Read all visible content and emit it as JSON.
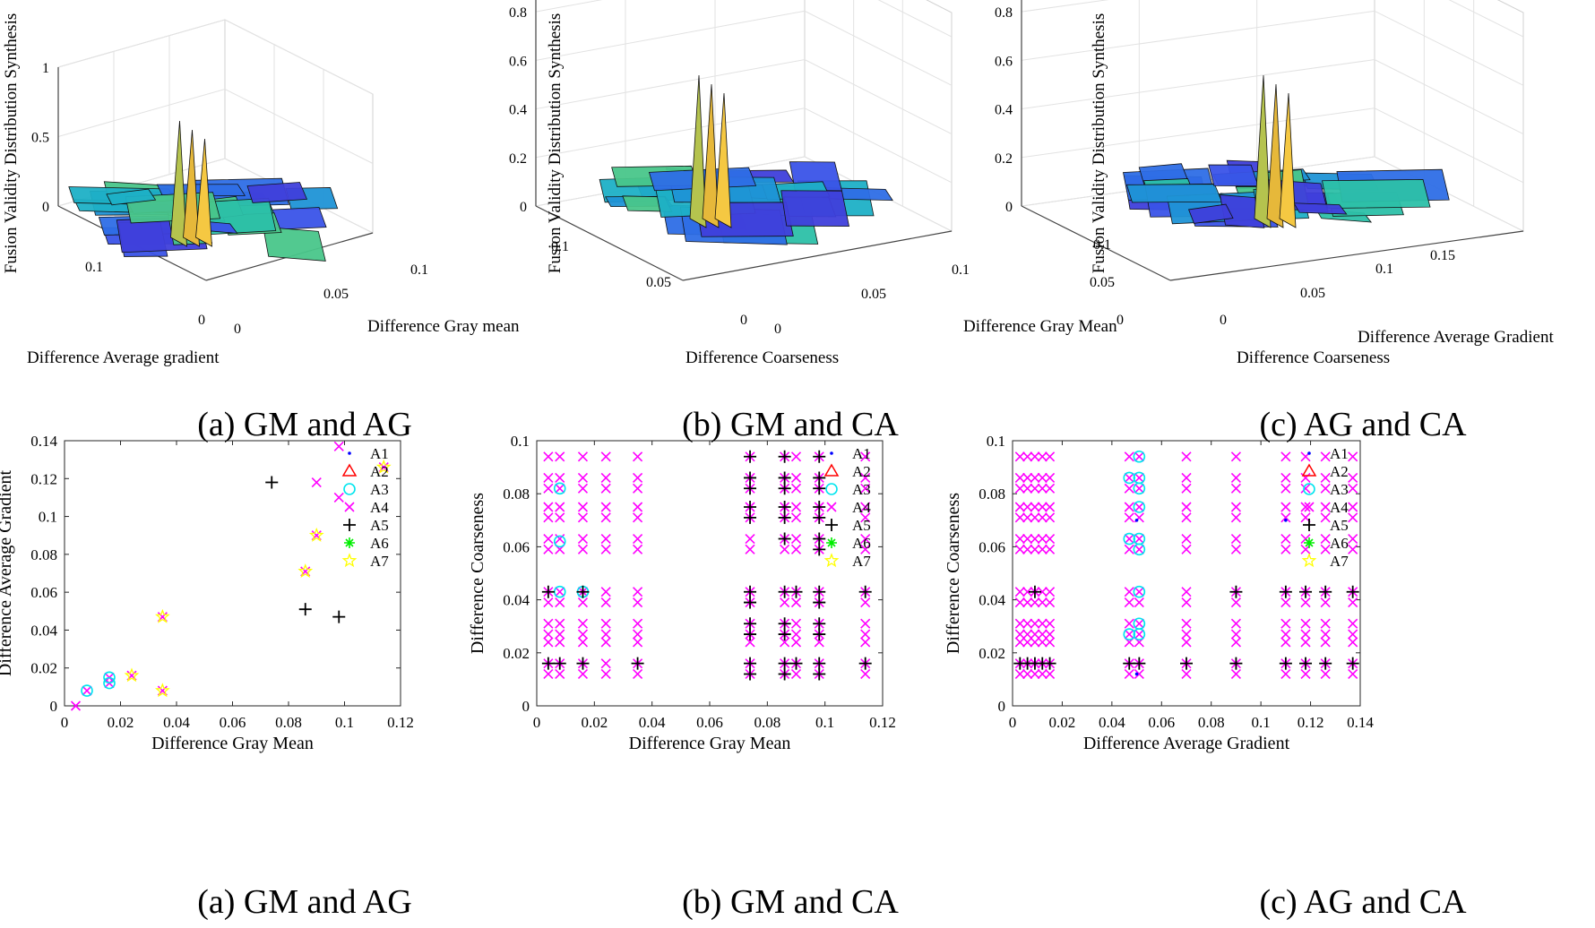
{
  "surface_panels": [
    {
      "caption": "(a) GM and AG",
      "zlabel": "Fusion Validity Distribution Synthesis",
      "xlabel": "Difference Gray mean",
      "ylabel": "Difference Average gradient",
      "z_ticks": [
        "0",
        "0.5",
        "1"
      ],
      "x_ticks": [
        "0",
        "0.05",
        "0.1"
      ],
      "y_ticks": [
        "0",
        "0.1"
      ]
    },
    {
      "caption": "(b) GM and CA",
      "zlabel": "Fusion Validity Distribution Synthesis",
      "xlabel": "Difference Gray Mean",
      "ylabel": "Difference Coarseness",
      "z_ticks": [
        "0",
        "0.2",
        "0.4",
        "0.6",
        "0.8"
      ],
      "x_ticks": [
        "0",
        "0.05",
        "0.1"
      ],
      "y_ticks": [
        "0",
        "0.05",
        "0.1"
      ]
    },
    {
      "caption": "(c) AG and CA",
      "zlabel": "Fusion Validity Distribution Synthesis",
      "xlabel": "Difference Average Gradient",
      "ylabel": "Difference Coarseness",
      "z_ticks": [
        "0",
        "0.2",
        "0.4",
        "0.6",
        "0.8"
      ],
      "x_ticks": [
        "0",
        "0.05",
        "0.1",
        "0.15"
      ],
      "y_ticks": [
        "0",
        "0.05",
        "0.1"
      ]
    }
  ],
  "chart_data": [
    {
      "type": "scatter",
      "caption": "(a) GM and AG",
      "xlabel": "Difference Gray Mean",
      "ylabel": "Difference Average Gradient",
      "xlim": [
        0,
        0.12
      ],
      "ylim": [
        0,
        0.14
      ],
      "x_ticks": [
        "0",
        "0.02",
        "0.04",
        "0.06",
        "0.08",
        "0.1",
        "0.12"
      ],
      "y_ticks": [
        "0",
        "0.02",
        "0.04",
        "0.06",
        "0.08",
        "0.1",
        "0.12",
        "0.14"
      ],
      "legend": [
        "A1",
        "A2",
        "A3",
        "A4",
        "A5",
        "A6",
        "A7"
      ],
      "series": [
        {
          "name": "A1",
          "points": []
        },
        {
          "name": "A2",
          "points": []
        },
        {
          "name": "A3",
          "points": [
            [
              0.008,
              0.008
            ],
            [
              0.016,
              0.012
            ],
            [
              0.016,
              0.015
            ]
          ]
        },
        {
          "name": "A4",
          "points": [
            [
              0.004,
              0.0
            ],
            [
              0.008,
              0.008
            ],
            [
              0.016,
              0.012
            ],
            [
              0.016,
              0.015
            ],
            [
              0.024,
              0.016
            ],
            [
              0.035,
              0.008
            ],
            [
              0.035,
              0.047
            ],
            [
              0.086,
              0.071
            ],
            [
              0.09,
              0.09
            ],
            [
              0.09,
              0.118
            ],
            [
              0.098,
              0.137
            ],
            [
              0.098,
              0.11
            ],
            [
              0.114,
              0.126
            ]
          ]
        },
        {
          "name": "A5",
          "points": [
            [
              0.074,
              0.118
            ],
            [
              0.086,
              0.051
            ],
            [
              0.098,
              0.047
            ]
          ]
        },
        {
          "name": "A6",
          "points": []
        },
        {
          "name": "A7",
          "points": [
            [
              0.024,
              0.016
            ],
            [
              0.035,
              0.008
            ],
            [
              0.035,
              0.047
            ],
            [
              0.086,
              0.071
            ],
            [
              0.09,
              0.09
            ],
            [
              0.114,
              0.126
            ]
          ]
        }
      ]
    },
    {
      "type": "scatter",
      "caption": "(b) GM and CA",
      "xlabel": "Difference Gray Mean",
      "ylabel": "Difference Coarseness",
      "xlim": [
        0,
        0.12
      ],
      "ylim": [
        0,
        0.1
      ],
      "x_ticks": [
        "0",
        "0.02",
        "0.04",
        "0.06",
        "0.08",
        "0.1",
        "0.12"
      ],
      "y_ticks": [
        "0",
        "0.02",
        "0.04",
        "0.06",
        "0.08",
        "0.1"
      ],
      "legend": [
        "A1",
        "A2",
        "A3",
        "A4",
        "A5",
        "A6",
        "A7"
      ],
      "grid_x": [
        0.004,
        0.008,
        0.016,
        0.024,
        0.035,
        0.074,
        0.086,
        0.09,
        0.098,
        0.114
      ],
      "grid_y": [
        0.012,
        0.016,
        0.024,
        0.027,
        0.031,
        0.039,
        0.043,
        0.059,
        0.063,
        0.071,
        0.075,
        0.082,
        0.086,
        0.094
      ],
      "series": [
        {
          "name": "A1",
          "points": []
        },
        {
          "name": "A2",
          "points": []
        },
        {
          "name": "A3",
          "points": [
            [
              0.008,
              0.082
            ],
            [
              0.008,
              0.062
            ],
            [
              0.008,
              0.043
            ],
            [
              0.016,
              0.043
            ]
          ]
        },
        {
          "name": "A4",
          "points": "grid (all listed x positions at all listed y positions)"
        },
        {
          "name": "A5",
          "points": [
            [
              0.004,
              0.043
            ],
            [
              0.008,
              0.016
            ],
            [
              0.004,
              0.016
            ],
            [
              0.016,
              0.016
            ],
            [
              0.016,
              0.043
            ],
            [
              0.035,
              0.016
            ],
            [
              0.074,
              0.094
            ],
            [
              0.074,
              0.086
            ],
            [
              0.074,
              0.082
            ],
            [
              0.074,
              0.075
            ],
            [
              0.074,
              0.071
            ],
            [
              0.074,
              0.043
            ],
            [
              0.074,
              0.039
            ],
            [
              0.074,
              0.031
            ],
            [
              0.074,
              0.027
            ],
            [
              0.074,
              0.016
            ],
            [
              0.074,
              0.012
            ],
            [
              0.086,
              0.094
            ],
            [
              0.086,
              0.086
            ],
            [
              0.086,
              0.082
            ],
            [
              0.086,
              0.075
            ],
            [
              0.086,
              0.071
            ],
            [
              0.086,
              0.063
            ],
            [
              0.086,
              0.043
            ],
            [
              0.086,
              0.031
            ],
            [
              0.086,
              0.027
            ],
            [
              0.086,
              0.016
            ],
            [
              0.086,
              0.012
            ],
            [
              0.09,
              0.043
            ],
            [
              0.09,
              0.016
            ],
            [
              0.098,
              0.094
            ],
            [
              0.098,
              0.086
            ],
            [
              0.098,
              0.082
            ],
            [
              0.098,
              0.075
            ],
            [
              0.098,
              0.071
            ],
            [
              0.098,
              0.063
            ],
            [
              0.098,
              0.059
            ],
            [
              0.098,
              0.043
            ],
            [
              0.098,
              0.039
            ],
            [
              0.098,
              0.031
            ],
            [
              0.098,
              0.027
            ],
            [
              0.098,
              0.016
            ],
            [
              0.098,
              0.012
            ],
            [
              0.114,
              0.043
            ],
            [
              0.114,
              0.016
            ]
          ]
        },
        {
          "name": "A6",
          "points": []
        },
        {
          "name": "A7",
          "points": []
        }
      ]
    },
    {
      "type": "scatter",
      "caption": "(c) AG and CA",
      "xlabel": "Difference Average Gradient",
      "ylabel": "Difference Coarseness",
      "xlim": [
        0,
        0.14
      ],
      "ylim": [
        0,
        0.1
      ],
      "x_ticks": [
        "0",
        "0.02",
        "0.04",
        "0.06",
        "0.08",
        "0.1",
        "0.12",
        "0.14"
      ],
      "y_ticks": [
        "0",
        "0.02",
        "0.04",
        "0.06",
        "0.08",
        "0.1"
      ],
      "legend": [
        "A1",
        "A2",
        "A3",
        "A4",
        "A5",
        "A6",
        "A7"
      ],
      "grid_x": [
        0.003,
        0.006,
        0.009,
        0.012,
        0.015,
        0.047,
        0.051,
        0.07,
        0.09,
        0.11,
        0.118,
        0.126,
        0.137
      ],
      "grid_y": [
        0.012,
        0.016,
        0.024,
        0.027,
        0.031,
        0.039,
        0.043,
        0.059,
        0.063,
        0.071,
        0.075,
        0.082,
        0.086,
        0.094
      ],
      "series": [
        {
          "name": "A1",
          "points": [
            [
              0.05,
              0.07
            ],
            [
              0.11,
              0.07
            ],
            [
              0.05,
              0.012
            ]
          ]
        },
        {
          "name": "A2",
          "points": []
        },
        {
          "name": "A3",
          "points": [
            [
              0.051,
              0.094
            ],
            [
              0.047,
              0.086
            ],
            [
              0.051,
              0.086
            ],
            [
              0.051,
              0.082
            ],
            [
              0.051,
              0.075
            ],
            [
              0.047,
              0.063
            ],
            [
              0.051,
              0.063
            ],
            [
              0.051,
              0.059
            ],
            [
              0.051,
              0.043
            ],
            [
              0.051,
              0.031
            ],
            [
              0.047,
              0.027
            ],
            [
              0.051,
              0.027
            ]
          ]
        },
        {
          "name": "A4",
          "points": "grid (all listed x positions at all listed y positions)"
        },
        {
          "name": "A5",
          "points": [
            [
              0.003,
              0.016
            ],
            [
              0.006,
              0.016
            ],
            [
              0.009,
              0.016
            ],
            [
              0.012,
              0.016
            ],
            [
              0.015,
              0.016
            ],
            [
              0.009,
              0.043
            ],
            [
              0.047,
              0.016
            ],
            [
              0.051,
              0.016
            ],
            [
              0.07,
              0.016
            ],
            [
              0.09,
              0.016
            ],
            [
              0.09,
              0.043
            ],
            [
              0.11,
              0.016
            ],
            [
              0.11,
              0.043
            ],
            [
              0.118,
              0.016
            ],
            [
              0.118,
              0.043
            ],
            [
              0.126,
              0.016
            ],
            [
              0.126,
              0.043
            ],
            [
              0.137,
              0.016
            ],
            [
              0.137,
              0.043
            ]
          ]
        },
        {
          "name": "A6",
          "points": []
        },
        {
          "name": "A7",
          "points": []
        }
      ]
    }
  ]
}
